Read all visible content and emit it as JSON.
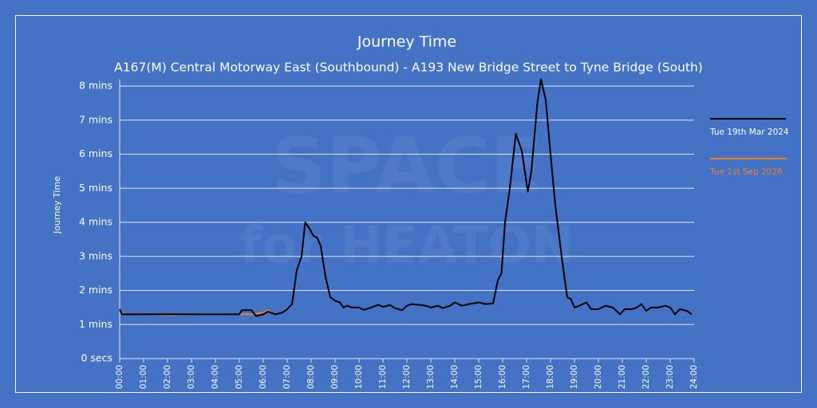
{
  "chart_data": {
    "type": "line",
    "title": "Journey Time",
    "subtitle": "A167(M) Central Motorway East (Southbound) - A193 New Bridge Street to Tyne Bridge (South)",
    "y_label": "Journey Time",
    "watermark": [
      "SPACE",
      "for HEATON"
    ],
    "xlim": [
      0,
      24
    ],
    "xticks": [
      {
        "value": 0,
        "label": "00:00"
      },
      {
        "value": 1,
        "label": "01:00"
      },
      {
        "value": 2,
        "label": "02:00"
      },
      {
        "value": 3,
        "label": "03:00"
      },
      {
        "value": 4,
        "label": "04:00"
      },
      {
        "value": 5,
        "label": "05:00"
      },
      {
        "value": 6,
        "label": "06:00"
      },
      {
        "value": 7,
        "label": "07:00"
      },
      {
        "value": 8,
        "label": "08:00"
      },
      {
        "value": 9,
        "label": "09:00"
      },
      {
        "value": 10,
        "label": "10:00"
      },
      {
        "value": 11,
        "label": "11:00"
      },
      {
        "value": 12,
        "label": "12:00"
      },
      {
        "value": 13,
        "label": "13:00"
      },
      {
        "value": 14,
        "label": "14:00"
      },
      {
        "value": 15,
        "label": "15:00"
      },
      {
        "value": 16,
        "label": "16:00"
      },
      {
        "value": 17,
        "label": "17:00"
      },
      {
        "value": 18,
        "label": "18:00"
      },
      {
        "value": 19,
        "label": "19:00"
      },
      {
        "value": 20,
        "label": "20:00"
      },
      {
        "value": 21,
        "label": "21:00"
      },
      {
        "value": 22,
        "label": "22:00"
      },
      {
        "value": 23,
        "label": "23:00"
      },
      {
        "value": 24,
        "label": "24:00"
      }
    ],
    "ylim": [
      0,
      8.2
    ],
    "yticks": [
      {
        "value": 0,
        "label": "0 secs"
      },
      {
        "value": 1,
        "label": "1 mins"
      },
      {
        "value": 2,
        "label": "2 mins"
      },
      {
        "value": 3,
        "label": "3 mins"
      },
      {
        "value": 4,
        "label": "4 mins"
      },
      {
        "value": 5,
        "label": "5 mins"
      },
      {
        "value": 6,
        "label": "6 mins"
      },
      {
        "value": 7,
        "label": "7 mins"
      },
      {
        "value": 8,
        "label": "8 mins"
      }
    ],
    "grid": true,
    "series": [
      {
        "name": "Tue 19th Mar 2024",
        "color": "#000000",
        "x": [
          0,
          0.1,
          1,
          2,
          3,
          4,
          5,
          5.1,
          5.5,
          5.7,
          6,
          6.2,
          6.5,
          6.8,
          7,
          7.2,
          7.4,
          7.6,
          7.75,
          7.9,
          8.1,
          8.25,
          8.4,
          8.6,
          8.8,
          9,
          9.2,
          9.35,
          9.5,
          9.7,
          10,
          10.2,
          10.5,
          10.8,
          11,
          11.3,
          11.5,
          11.8,
          12,
          12.2,
          12.5,
          12.8,
          13,
          13.3,
          13.5,
          13.8,
          14,
          14.3,
          14.6,
          15,
          15.3,
          15.6,
          15.8,
          15.95,
          16.1,
          16.3,
          16.55,
          16.8,
          17.05,
          17.2,
          17.45,
          17.6,
          17.8,
          18,
          18.2,
          18.5,
          18.7,
          18.85,
          19,
          19.2,
          19.5,
          19.7,
          20,
          20.3,
          20.6,
          20.9,
          21.1,
          21.4,
          21.6,
          21.8,
          22,
          22.2,
          22.5,
          22.8,
          23,
          23.2,
          23.4,
          23.7,
          23.9
        ],
        "values": [
          1.45,
          1.3,
          1.3,
          1.3,
          1.3,
          1.3,
          1.3,
          1.42,
          1.42,
          1.25,
          1.3,
          1.38,
          1.3,
          1.35,
          1.45,
          1.6,
          2.6,
          3.0,
          4.0,
          3.85,
          3.6,
          3.55,
          3.3,
          2.4,
          1.8,
          1.7,
          1.65,
          1.5,
          1.55,
          1.5,
          1.5,
          1.43,
          1.5,
          1.58,
          1.52,
          1.57,
          1.48,
          1.42,
          1.55,
          1.6,
          1.58,
          1.55,
          1.5,
          1.55,
          1.48,
          1.55,
          1.65,
          1.55,
          1.6,
          1.65,
          1.6,
          1.62,
          2.3,
          2.5,
          4.0,
          5.0,
          6.6,
          6.1,
          4.9,
          5.5,
          7.5,
          8.2,
          7.6,
          6.0,
          4.5,
          2.8,
          1.8,
          1.75,
          1.5,
          1.55,
          1.65,
          1.45,
          1.45,
          1.55,
          1.5,
          1.3,
          1.45,
          1.45,
          1.5,
          1.6,
          1.4,
          1.5,
          1.5,
          1.55,
          1.5,
          1.3,
          1.45,
          1.4,
          1.3
        ]
      },
      {
        "name": "Tue 1st Sep 2026",
        "color": "#ed7d31",
        "x": [
          0,
          0.2,
          1,
          1.9,
          2.3,
          3,
          4,
          5,
          5.5,
          6,
          6.2,
          6.4
        ],
        "values": [
          1.38,
          1.32,
          1.3,
          1.28,
          1.28,
          1.3,
          1.3,
          1.3,
          1.3,
          1.35,
          1.42,
          1.32
        ]
      }
    ]
  }
}
